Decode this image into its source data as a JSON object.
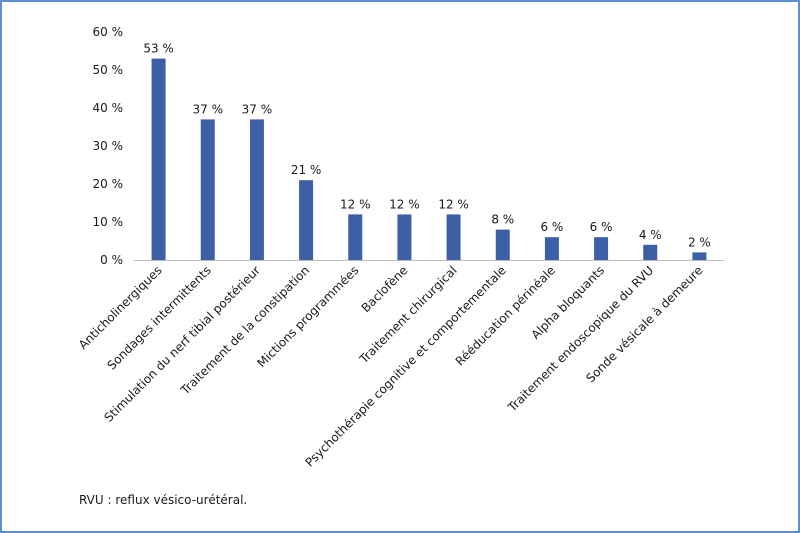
{
  "chart_data": {
    "type": "bar",
    "categories": [
      "Anticholinergiques",
      "Sondages intermittents",
      "Stimulation du nerf tibial postérieur",
      "Traitement de la constipation",
      "Mictions programmées",
      "Baclofène",
      "Traitement chirurgical",
      "Psychothérapie cognitive et comportementale",
      "Rééducation périnéale",
      "Alpha bloquants",
      "Traitement endoscopique du RVU",
      "Sonde vésicale à demeure"
    ],
    "values": [
      53,
      37,
      37,
      21,
      12,
      12,
      12,
      8,
      6,
      6,
      4,
      2
    ],
    "data_labels": [
      "53 %",
      "37 %",
      "37 %",
      "21 %",
      "12 %",
      "12 %",
      "12 %",
      "8 %",
      "6 %",
      "6 %",
      "4 %",
      "2 %"
    ],
    "y_ticks": [
      0,
      10,
      20,
      30,
      40,
      50,
      60
    ],
    "y_tick_labels": [
      "0 %",
      "10 %",
      "20 %",
      "30 %",
      "40 %",
      "50 %",
      "60 %"
    ],
    "ylim": [
      0,
      60
    ],
    "bar_color": "#3d5fa6",
    "grid": false,
    "title": "",
    "xlabel": "",
    "ylabel": ""
  },
  "footnote": "RVU : reflux vésico-urétéral.",
  "colors": {
    "frame": "#5b8fd0",
    "axis": "#bfbfbf"
  }
}
